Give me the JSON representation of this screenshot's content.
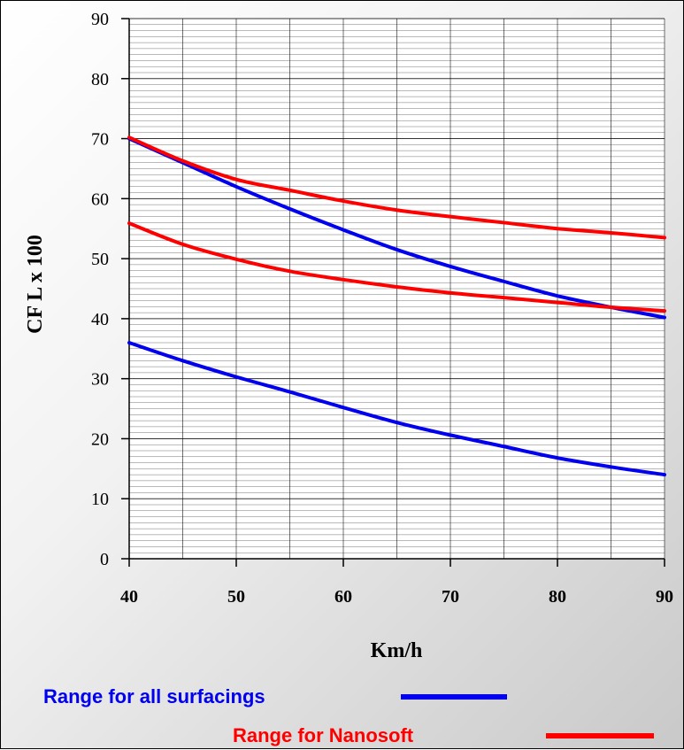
{
  "chart_data": {
    "type": "line",
    "xlabel": "Km/h",
    "ylabel": "CF L x 100",
    "xlim": [
      40,
      90
    ],
    "ylim": [
      0,
      90
    ],
    "x_ticks": [
      40,
      50,
      60,
      70,
      80,
      90
    ],
    "y_ticks": [
      0,
      10,
      20,
      30,
      40,
      50,
      60,
      70,
      80,
      90
    ],
    "grid": true,
    "colors": {
      "all_surfacings": "#0000ee",
      "nanosoft": "#ff0000"
    },
    "series": [
      {
        "group": "all_surfacings",
        "x": [
          40,
          45,
          50,
          55,
          60,
          65,
          70,
          75,
          80,
          85,
          90
        ],
        "y": [
          70,
          66,
          62,
          58.3,
          54.8,
          51.5,
          48.7,
          46.2,
          43.8,
          41.9,
          40.2
        ]
      },
      {
        "group": "all_surfacings",
        "x": [
          40,
          45,
          50,
          55,
          60,
          65,
          70,
          75,
          80,
          85,
          90
        ],
        "y": [
          36,
          33,
          30.3,
          27.8,
          25.2,
          22.7,
          20.6,
          18.7,
          16.8,
          15.3,
          14
        ]
      },
      {
        "group": "nanosoft",
        "x": [
          40,
          45,
          50,
          55,
          60,
          65,
          70,
          75,
          80,
          85,
          90
        ],
        "y": [
          70.2,
          66.3,
          63.2,
          61.4,
          59.6,
          58.1,
          57,
          56,
          55,
          54.3,
          53.5
        ]
      },
      {
        "group": "nanosoft",
        "x": [
          40,
          45,
          50,
          55,
          60,
          65,
          70,
          75,
          80,
          85,
          90
        ],
        "y": [
          55.9,
          52.4,
          49.9,
          47.9,
          46.5,
          45.3,
          44.3,
          43.5,
          42.7,
          41.9,
          41.3
        ]
      }
    ],
    "legend": [
      {
        "group": "all_surfacings",
        "label": "Range for all surfacings"
      },
      {
        "group": "nanosoft",
        "label": "Range for Nanosoft"
      }
    ]
  }
}
